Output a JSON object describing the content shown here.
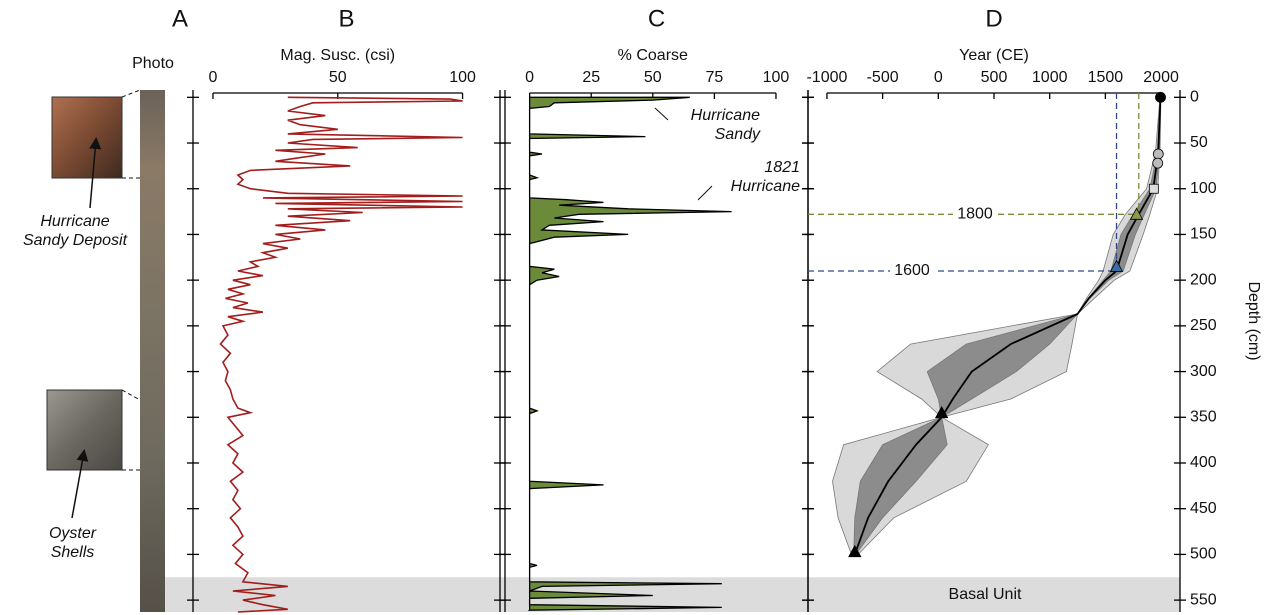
{
  "depth_axis": {
    "label": "Depth (cm)",
    "ylim": [
      -8,
      563
    ],
    "yticks": [
      0,
      50,
      100,
      150,
      200,
      250,
      300,
      350,
      400,
      450,
      500,
      550
    ]
  },
  "photo": {
    "letter": "A",
    "label": "Photo",
    "annotations": [
      "Hurricane Sandy Deposit",
      "Oyster Shells"
    ]
  },
  "basal_unit": {
    "label": "Basal Unit",
    "depths": [
      525,
      563
    ]
  },
  "chart_data": [
    {
      "type": "line",
      "letter": "B",
      "xlabel": "Mag. Susc. (csi)",
      "xlim": [
        -8,
        115
      ],
      "xticks": [
        0,
        50,
        100
      ],
      "color": "#a31d1d",
      "depths": [
        0,
        2,
        4,
        6,
        10,
        15,
        20,
        25,
        30,
        35,
        40,
        44,
        46,
        50,
        55,
        58,
        62,
        66,
        70,
        75,
        80,
        85,
        90,
        95,
        100,
        105,
        108,
        110,
        114,
        116,
        120,
        122,
        126,
        130,
        135,
        140,
        145,
        150,
        155,
        160,
        165,
        170,
        175,
        180,
        185,
        190,
        195,
        200,
        205,
        210,
        215,
        220,
        225,
        230,
        235,
        240,
        245,
        250,
        260,
        270,
        280,
        290,
        300,
        310,
        320,
        330,
        340,
        345,
        350,
        360,
        370,
        380,
        390,
        400,
        410,
        420,
        430,
        440,
        450,
        460,
        470,
        480,
        490,
        500,
        510,
        520,
        530,
        535,
        540,
        545,
        550,
        555,
        560,
        563
      ],
      "values": [
        30,
        95,
        100,
        40,
        35,
        30,
        45,
        30,
        35,
        50,
        30,
        100,
        40,
        30,
        58,
        25,
        45,
        35,
        25,
        55,
        15,
        10,
        12,
        10,
        15,
        30,
        100,
        20,
        100,
        25,
        100,
        30,
        60,
        30,
        55,
        25,
        45,
        25,
        35,
        20,
        30,
        20,
        25,
        15,
        18,
        10,
        20,
        8,
        15,
        6,
        12,
        5,
        14,
        8,
        20,
        6,
        12,
        4,
        6,
        3,
        7,
        4,
        6,
        5,
        7,
        8,
        10,
        15,
        6,
        9,
        12,
        6,
        10,
        8,
        12,
        7,
        10,
        8,
        11,
        7,
        10,
        12,
        8,
        12,
        9,
        14,
        12,
        30,
        8,
        25,
        12,
        20,
        30,
        10
      ]
    },
    {
      "type": "area",
      "letter": "C",
      "xlabel": "% Coarse",
      "xlim": [
        -10,
        113
      ],
      "xticks": [
        0,
        25,
        50,
        75,
        100
      ],
      "color": "#6b8a3a",
      "annotations": [
        "Hurricane Sandy",
        "1821 Hurricane"
      ],
      "depths": [
        0,
        3,
        6,
        10,
        12,
        40,
        43,
        45,
        60,
        62,
        64,
        85,
        88,
        90,
        110,
        112,
        115,
        118,
        122,
        125,
        128,
        132,
        136,
        140,
        145,
        150,
        153,
        160,
        185,
        188,
        192,
        196,
        200,
        205,
        340,
        343,
        346,
        420,
        424,
        428,
        510,
        512,
        514,
        530,
        532,
        535,
        540,
        545,
        548,
        555,
        558,
        561
      ],
      "values": [
        65,
        50,
        10,
        8,
        0,
        0,
        47,
        0,
        0,
        5,
        0,
        0,
        3,
        0,
        0,
        15,
        30,
        12,
        40,
        82,
        20,
        10,
        30,
        8,
        5,
        40,
        10,
        0,
        0,
        10,
        5,
        12,
        3,
        0,
        0,
        3,
        0,
        0,
        30,
        0,
        0,
        3,
        0,
        0,
        78,
        5,
        0,
        50,
        0,
        0,
        78,
        0
      ]
    },
    {
      "type": "age_model",
      "letter": "D",
      "xlabel": "Year (CE)",
      "xlim": [
        -1170,
        2170
      ],
      "xticks": [
        -1000,
        -500,
        0,
        500,
        1000,
        1500,
        2000
      ],
      "depths": [
        0,
        30,
        60,
        100,
        128,
        150,
        190,
        200,
        220,
        237,
        270,
        300,
        330,
        350,
        380,
        420,
        460,
        500
      ],
      "median": [
        1995,
        1985,
        1975,
        1930,
        1800,
        1700,
        1600,
        1500,
        1350,
        1250,
        650,
        300,
        130,
        30,
        -200,
        -450,
        -630,
        -750
      ],
      "band95": {
        "color": "#d9d9d9",
        "lower": [
          1990,
          1970,
          1950,
          1870,
          1680,
          1570,
          1480,
          1440,
          1330,
          1250,
          -250,
          -550,
          -150,
          30,
          -850,
          -950,
          -900,
          -780
        ],
        "upper": [
          1998,
          1995,
          1990,
          1970,
          1900,
          1840,
          1720,
          1580,
          1400,
          1250,
          1200,
          1150,
          650,
          30,
          450,
          250,
          -400,
          -720
        ]
      },
      "band68": {
        "color": "#8c8c8c",
        "lower": [
          1993,
          1978,
          1965,
          1900,
          1750,
          1640,
          1550,
          1480,
          1345,
          1250,
          250,
          -100,
          0,
          30,
          -500,
          -700,
          -750,
          -760
        ],
        "upper": [
          1997,
          1990,
          1985,
          1955,
          1850,
          1770,
          1660,
          1530,
          1360,
          1250,
          1000,
          700,
          300,
          30,
          80,
          -200,
          -500,
          -740
        ]
      },
      "dates": {
        "depths": [
          0,
          62,
          72,
          100,
          128,
          185,
          345,
          497
        ],
        "years": [
          1995,
          1975,
          1970,
          1935,
          1780,
          1600,
          30,
          -750
        ],
        "shapes": [
          "circle",
          "circle",
          "circle",
          "square",
          "triangle",
          "triangle",
          "triangle",
          "triangle"
        ],
        "colors": [
          "#000000",
          "#bbbbbb",
          "#bbbbbb",
          "#dddddd",
          "#8a9a4a",
          "#3b6ea8",
          "#000000",
          "#000000"
        ]
      },
      "reference_lines": [
        {
          "label": "1800",
          "year": 1800,
          "depth": 128,
          "color": "#7a8a3a"
        },
        {
          "label": "1600",
          "year": 1600,
          "depth": 190,
          "color": "#2d4a8a"
        }
      ]
    }
  ]
}
